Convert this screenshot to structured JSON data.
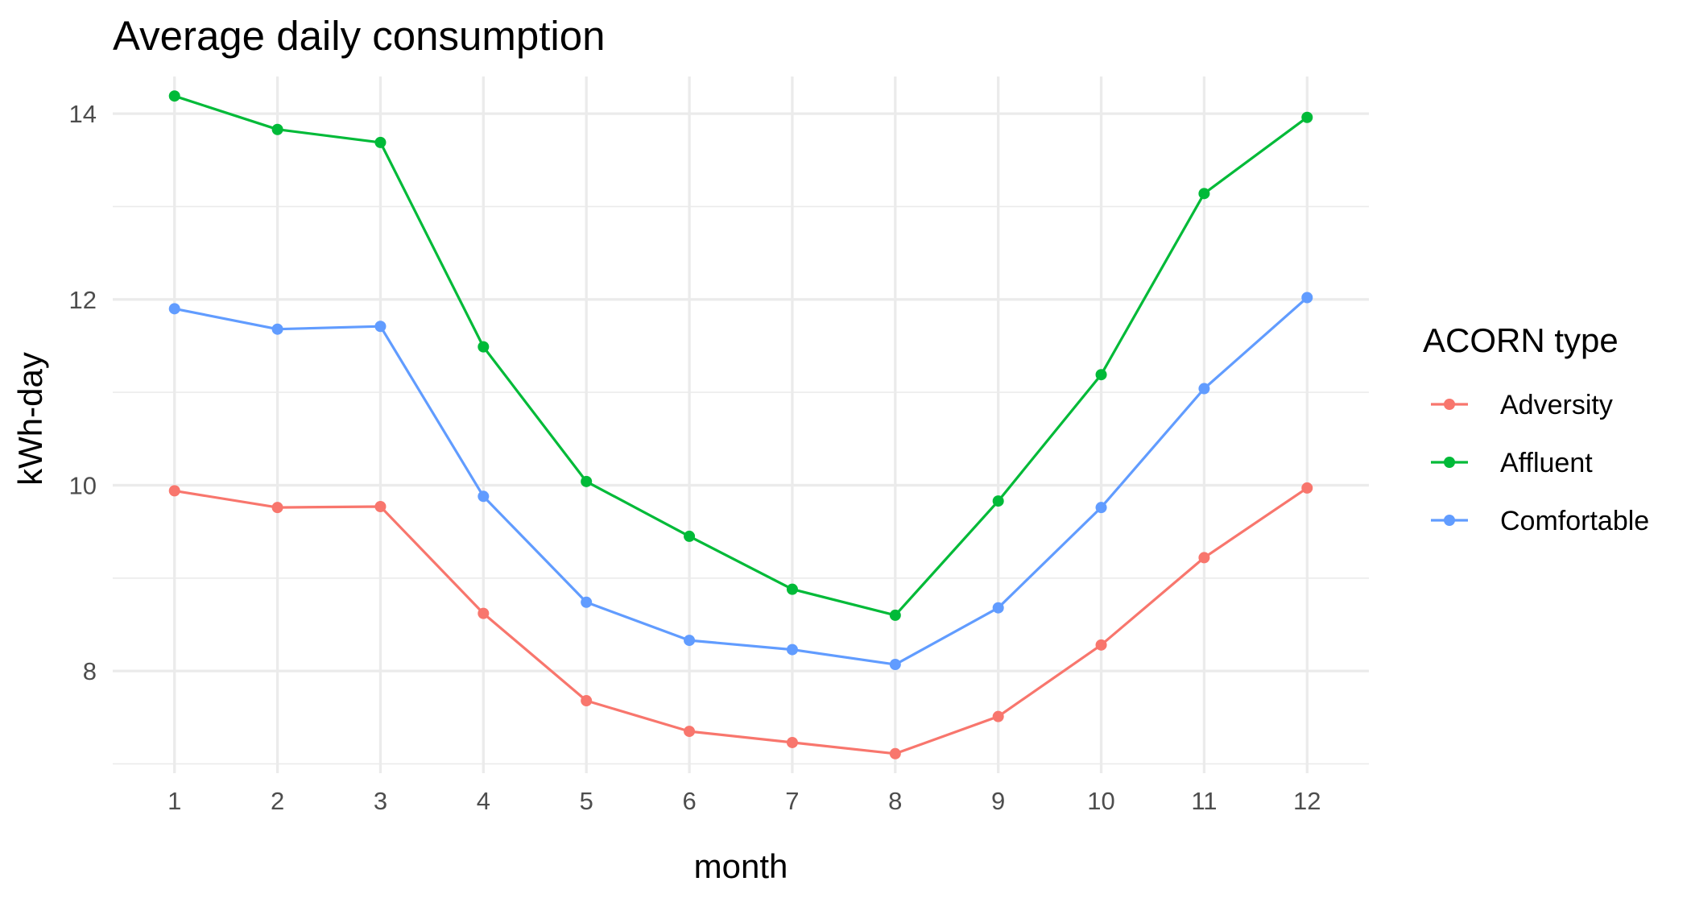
{
  "chart_data": {
    "type": "line",
    "title": "Average daily consumption",
    "xlabel": "month",
    "ylabel": "kWh-day",
    "x": [
      1,
      2,
      3,
      4,
      5,
      6,
      7,
      8,
      9,
      10,
      11,
      12
    ],
    "x_ticks": [
      "1",
      "2",
      "3",
      "4",
      "5",
      "6",
      "7",
      "8",
      "9",
      "10",
      "11",
      "12"
    ],
    "y_ticks": [
      "8",
      "10",
      "12",
      "14"
    ],
    "xlim": [
      0.4,
      12.6
    ],
    "ylim": [
      6.9,
      14.4
    ],
    "grid": true,
    "legend": {
      "title": "ACORN type",
      "position": "right"
    },
    "series": [
      {
        "name": "Adversity",
        "color": "#F8766D",
        "values": [
          9.94,
          9.76,
          9.77,
          8.62,
          7.68,
          7.35,
          7.23,
          7.11,
          7.51,
          8.28,
          9.22,
          9.97
        ]
      },
      {
        "name": "Affluent",
        "color": "#00BA38",
        "values": [
          14.19,
          13.83,
          13.69,
          11.49,
          10.04,
          9.45,
          8.88,
          8.6,
          9.83,
          11.19,
          13.14,
          13.96
        ]
      },
      {
        "name": "Comfortable",
        "color": "#619CFF",
        "values": [
          11.9,
          11.68,
          11.71,
          9.88,
          8.74,
          8.33,
          8.23,
          8.07,
          8.68,
          9.76,
          11.04,
          12.02
        ]
      }
    ]
  }
}
